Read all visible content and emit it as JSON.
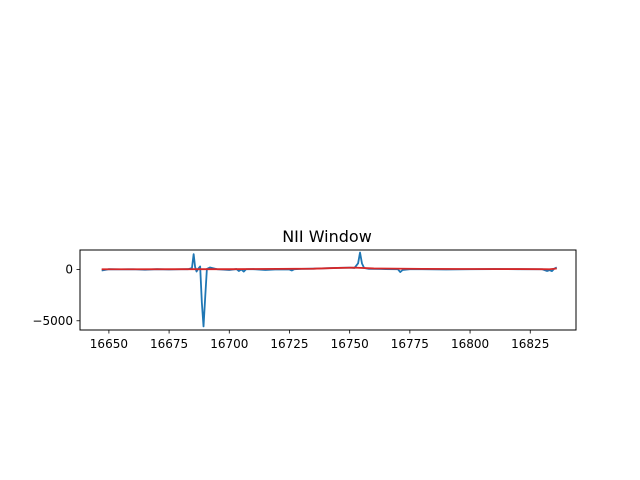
{
  "chart_data": {
    "type": "line",
    "title": "NII Window",
    "xlabel": "",
    "ylabel": "",
    "xlim": [
      16638,
      16844
    ],
    "ylim": [
      -5900,
      1900
    ],
    "xticks": [
      16650,
      16675,
      16700,
      16725,
      16750,
      16775,
      16800,
      16825
    ],
    "yticks": [
      -5000,
      0
    ],
    "grid": false,
    "legend": "none",
    "series": [
      {
        "color": "#1f77b4",
        "x": [
          16647,
          16650,
          16655,
          16660,
          16665,
          16670,
          16675,
          16680,
          16683,
          16684.5,
          16685.2,
          16685.8,
          16686.4,
          16687.2,
          16687.9,
          16688.6,
          16689.3,
          16690,
          16690.7,
          16692,
          16695,
          16700,
          16703,
          16704,
          16705,
          16706,
          16707,
          16710,
          16715,
          16720,
          16725,
          16726,
          16727,
          16730,
          16735,
          16740,
          16745,
          16750,
          16752,
          16753.5,
          16754.3,
          16755.1,
          16756,
          16758,
          16765,
          16770,
          16771,
          16772,
          16775,
          16780,
          16790,
          16800,
          16810,
          16820,
          16830,
          16832,
          16833,
          16834,
          16835,
          16836
        ],
        "values": [
          -100,
          30,
          10,
          20,
          -20,
          30,
          0,
          20,
          30,
          150,
          1500,
          250,
          -200,
          100,
          300,
          -3200,
          -5550,
          -2700,
          50,
          200,
          20,
          -50,
          40,
          -150,
          0,
          -200,
          20,
          30,
          -50,
          10,
          0,
          -100,
          30,
          60,
          80,
          120,
          160,
          180,
          150,
          600,
          1650,
          600,
          150,
          60,
          40,
          30,
          -250,
          -50,
          30,
          20,
          0,
          20,
          40,
          30,
          20,
          -150,
          -60,
          -160,
          80,
          200
        ]
      },
      {
        "color": "#d62728",
        "x": [
          16647,
          16660,
          16680,
          16700,
          16720,
          16735,
          16745,
          16752,
          16760,
          16780,
          16800,
          16820,
          16830,
          16833,
          16836
        ],
        "values": [
          20,
          20,
          30,
          30,
          60,
          80,
          150,
          180,
          100,
          60,
          50,
          40,
          30,
          20,
          100
        ]
      }
    ]
  }
}
